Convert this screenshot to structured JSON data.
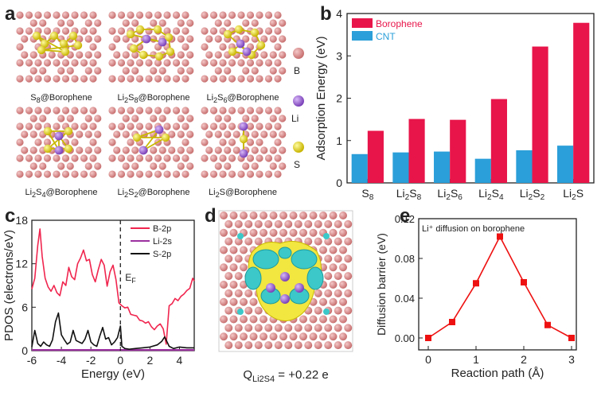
{
  "panels": {
    "a": {
      "letter": "a",
      "structures": [
        {
          "main": "S",
          "sub": "8",
          "rest": "@Borophene"
        },
        {
          "main": "Li",
          "sub": "2",
          "main2": "S",
          "sub2": "8",
          "rest": "@Borophene"
        },
        {
          "main": "Li",
          "sub": "2",
          "main2": "S",
          "sub2": "6",
          "rest": "@Borophene"
        },
        {
          "main": "Li",
          "sub": "2",
          "main2": "S",
          "sub2": "4",
          "rest": "@Borophene"
        },
        {
          "main": "Li",
          "sub": "2",
          "main2": "S",
          "sub2": "2",
          "rest": "@Borophene"
        },
        {
          "main": "Li",
          "sub": "2",
          "main2": "S",
          "sub2": "",
          "rest": "@Borophene"
        }
      ],
      "atom_legend": [
        "B",
        "Li",
        "S"
      ],
      "colors": {
        "B": "#d98b8b",
        "Li": "#9b6fd1",
        "S": "#e8d820"
      }
    },
    "b": {
      "letter": "b"
    },
    "c": {
      "letter": "c",
      "fermi_label": "E",
      "fermi_sub": "F"
    },
    "d": {
      "letter": "d",
      "charge_label": "Q",
      "charge_sub": "Li2S4",
      "charge_value": " = +0.22 e"
    },
    "e": {
      "letter": "e",
      "annotation": "Li⁺ diffusion on borophene"
    }
  },
  "chart_data": [
    {
      "panel": "b",
      "type": "bar",
      "categories": [
        "S8",
        "Li2S8",
        "Li2S6",
        "Li2S4",
        "Li2S2",
        "Li2S"
      ],
      "category_labels": [
        {
          "a": "S",
          "as": "8",
          "b": "",
          "bs": ""
        },
        {
          "a": "Li",
          "as": "2",
          "b": "S",
          "bs": "8"
        },
        {
          "a": "Li",
          "as": "2",
          "b": "S",
          "bs": "6"
        },
        {
          "a": "Li",
          "as": "2",
          "b": "S",
          "bs": "4"
        },
        {
          "a": "Li",
          "as": "2",
          "b": "S",
          "bs": "2"
        },
        {
          "a": "Li",
          "as": "2",
          "b": "S",
          "bs": ""
        }
      ],
      "series": [
        {
          "name": "CNT",
          "color": "#2b9fd9",
          "values": [
            0.68,
            0.72,
            0.74,
            0.57,
            0.77,
            0.88
          ]
        },
        {
          "name": "Borophene",
          "color": "#e8154a",
          "values": [
            1.23,
            1.51,
            1.49,
            1.98,
            3.22,
            3.78
          ]
        }
      ],
      "ylabel": "Adsorption Energy (eV)",
      "ylim": [
        0,
        4
      ],
      "yticks": [
        "0",
        "1",
        "2",
        "3",
        "4"
      ],
      "legend": "top-left"
    },
    {
      "panel": "c",
      "type": "line",
      "xlabel": "Energy (eV)",
      "ylabel": "PDOS (electrons/eV)",
      "xlim": [
        -6,
        5
      ],
      "ylim": [
        0,
        18
      ],
      "xticks": [
        "-6",
        "-4",
        "-2",
        "0",
        "2",
        "4"
      ],
      "yticks": [
        "0",
        "6",
        "12",
        "18"
      ],
      "series": [
        {
          "name": "B-2p",
          "color": "#f0254e",
          "x": [
            -6.0,
            -5.8,
            -5.6,
            -5.45,
            -5.3,
            -5.1,
            -4.9,
            -4.7,
            -4.5,
            -4.3,
            -4.1,
            -3.9,
            -3.7,
            -3.5,
            -3.3,
            -3.1,
            -2.9,
            -2.7,
            -2.5,
            -2.3,
            -2.1,
            -1.9,
            -1.7,
            -1.5,
            -1.3,
            -1.1,
            -0.9,
            -0.7,
            -0.5,
            -0.3,
            -0.1,
            0.1,
            0.3,
            0.5,
            0.7,
            0.9,
            1.1,
            1.3,
            1.5,
            1.7,
            1.9,
            2.1,
            2.3,
            2.5,
            2.7,
            2.9,
            3.1,
            3.3,
            3.5,
            3.7,
            3.9,
            4.1,
            4.3,
            4.5,
            4.7,
            4.9,
            5.0
          ],
          "y": [
            8.5,
            10.0,
            14.5,
            16.8,
            13.0,
            10.0,
            8.8,
            8.2,
            9.0,
            8.0,
            7.6,
            9.5,
            9.0,
            11.5,
            10.2,
            9.8,
            12.0,
            12.8,
            13.9,
            12.4,
            12.6,
            10.5,
            9.5,
            11.2,
            12.6,
            11.8,
            8.9,
            10.9,
            11.8,
            9.8,
            6.6,
            6.2,
            5.9,
            6.0,
            5.0,
            4.9,
            4.8,
            4.2,
            4.1,
            3.8,
            4.0,
            3.3,
            2.9,
            3.4,
            3.7,
            3.0,
            0.9,
            6.2,
            6.5,
            7.2,
            6.9,
            7.5,
            7.8,
            8.3,
            8.6,
            10.0,
            9.6
          ]
        },
        {
          "name": "Li-2s",
          "color": "#9b2fa0",
          "x": [
            -6.0,
            -3.0,
            0.0,
            3.0,
            5.0
          ],
          "y": [
            0.1,
            0.1,
            0.1,
            0.1,
            0.1
          ]
        },
        {
          "name": "S-2p",
          "color": "#111111",
          "x": [
            -6.0,
            -5.8,
            -5.6,
            -5.4,
            -5.2,
            -5.0,
            -4.8,
            -4.6,
            -4.4,
            -4.2,
            -4.0,
            -3.8,
            -3.6,
            -3.4,
            -3.2,
            -3.0,
            -2.8,
            -2.6,
            -2.4,
            -2.2,
            -2.0,
            -1.8,
            -1.6,
            -1.4,
            -1.2,
            -1.0,
            -0.8,
            -0.6,
            -0.4,
            -0.2,
            0.0,
            0.1,
            0.3,
            0.6,
            1.0,
            1.5,
            2.0,
            2.5,
            2.8,
            3.0,
            3.3,
            3.6,
            4.0,
            4.5,
            5.0
          ],
          "y": [
            0.5,
            2.8,
            1.0,
            0.6,
            1.2,
            0.8,
            0.6,
            1.5,
            4.0,
            5.2,
            2.2,
            1.5,
            0.9,
            1.2,
            2.8,
            1.4,
            1.2,
            1.0,
            1.6,
            2.8,
            1.2,
            0.8,
            0.6,
            2.0,
            3.2,
            1.6,
            1.8,
            0.8,
            1.2,
            1.8,
            3.4,
            0.6,
            0.3,
            0.2,
            0.3,
            0.4,
            0.5,
            0.8,
            1.3,
            1.9,
            0.6,
            0.3,
            0.5,
            0.4,
            0.4
          ]
        }
      ],
      "fermi_x": 0,
      "legend": "top-right"
    },
    {
      "panel": "e",
      "type": "line",
      "xlabel": "Reaction path (Å)",
      "ylabel": "Diffusion barrier (eV)",
      "xlim": [
        -0.2,
        3.1
      ],
      "ylim": [
        -0.012,
        0.12
      ],
      "xticks": [
        "0",
        "1",
        "2",
        "3"
      ],
      "yticks": [
        "0.00",
        "0.04",
        "0.08",
        "0.12"
      ],
      "x": [
        0,
        0.5,
        1.0,
        1.5,
        2.0,
        2.5,
        3.0
      ],
      "y": [
        0.0,
        0.016,
        0.055,
        0.102,
        0.056,
        0.013,
        0.0
      ],
      "color": "#ee1111"
    }
  ]
}
